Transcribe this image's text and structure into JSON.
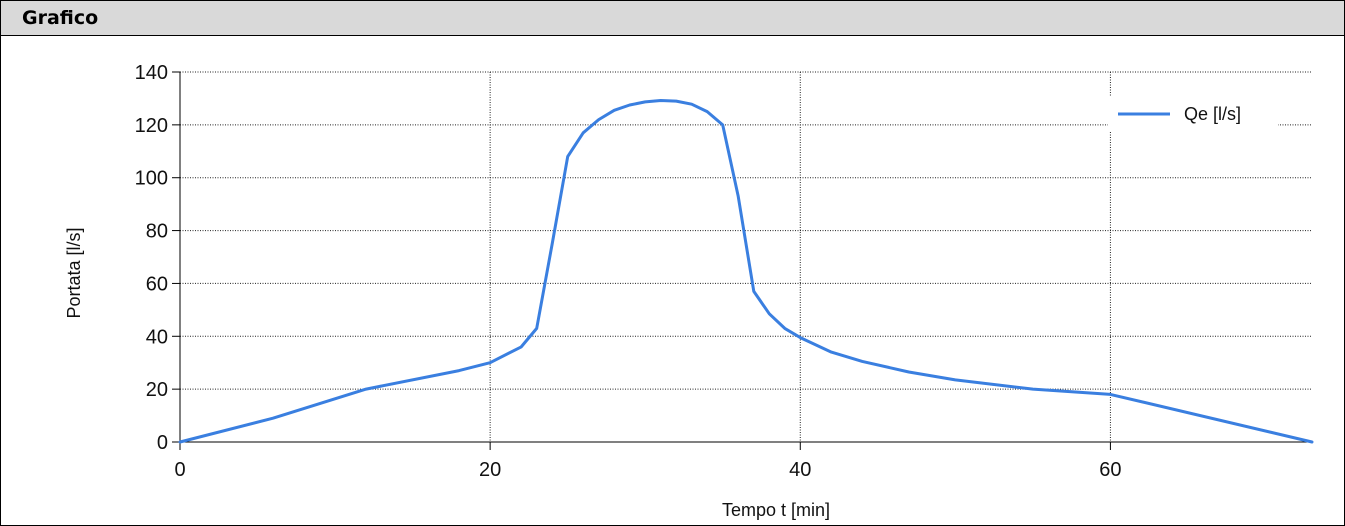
{
  "panel": {
    "title": "Grafico"
  },
  "chart_data": {
    "type": "line",
    "title": "",
    "xlabel": "Tempo t [min]",
    "ylabel": "Portata [l/s]",
    "xlim": [
      0,
      73
    ],
    "ylim": [
      0,
      140
    ],
    "xticks": [
      0,
      20,
      40,
      60
    ],
    "yticks": [
      0,
      20,
      40,
      60,
      80,
      100,
      120,
      140
    ],
    "grid": true,
    "legend_position": "top-right",
    "series": [
      {
        "name": "Qe [l/s]",
        "color": "#3a7fe0",
        "x": [
          0,
          6,
          12,
          18,
          20,
          22,
          23,
          24,
          25,
          26,
          27,
          28,
          29,
          30,
          31,
          32,
          33,
          34,
          35,
          36,
          37,
          38,
          39,
          40,
          42,
          44,
          47,
          50,
          55,
          60,
          73
        ],
        "y": [
          0,
          9,
          20,
          27,
          30,
          36,
          43,
          75,
          108,
          117,
          122,
          125.5,
          127.5,
          128.7,
          129.2,
          129,
          127.8,
          125,
          120,
          93,
          57,
          48.5,
          43,
          39.5,
          34,
          30.5,
          26.5,
          23.5,
          20,
          18,
          0
        ]
      }
    ]
  }
}
